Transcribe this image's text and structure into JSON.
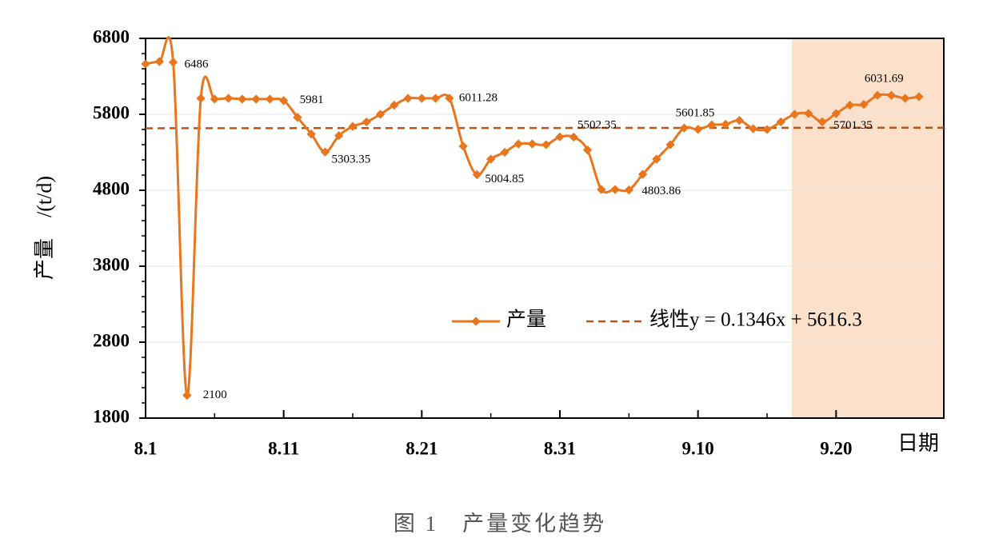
{
  "chart_data": {
    "type": "line",
    "y_label": "产量　/(t/d)",
    "x_label": "日期",
    "caption": "图 1　产量变化趋势",
    "x": [
      0,
      1,
      2,
      3,
      4,
      5,
      6,
      7,
      8,
      9,
      10,
      11,
      12,
      13,
      14,
      15,
      16,
      17,
      18,
      19,
      20,
      21,
      22,
      23,
      24,
      25,
      26,
      27,
      28,
      29,
      30,
      31,
      32,
      33,
      34,
      35,
      36,
      37,
      38,
      39,
      40,
      41,
      42,
      43,
      44,
      45,
      46,
      47,
      48,
      49,
      50,
      51,
      52,
      53,
      54,
      55,
      56
    ],
    "xlim": [
      0,
      57.8
    ],
    "xticks": [
      {
        "value": 0,
        "label": "8.1"
      },
      {
        "value": 10,
        "label": "8.11"
      },
      {
        "value": 20,
        "label": "8.21"
      },
      {
        "value": 30,
        "label": "8.31"
      },
      {
        "value": 40,
        "label": "9.10"
      },
      {
        "value": 50,
        "label": "9.20"
      }
    ],
    "ylim": [
      1800,
      6800
    ],
    "yticks": [
      1800,
      2800,
      3800,
      4800,
      5800,
      6800
    ],
    "grid": true,
    "series": [
      {
        "name": "产量",
        "color": "#e8761e",
        "values": [
          6463,
          6495,
          6486,
          2100,
          6010,
          6000,
          6010,
          6000,
          6000,
          6000,
          5981,
          5760,
          5540,
          5303.35,
          5520,
          5640,
          5700,
          5800,
          5920,
          6010,
          6010,
          6010,
          6011.28,
          5380,
          5004.85,
          5210,
          5300,
          5410,
          5410,
          5400,
          5502.35,
          5500,
          5330,
          4810,
          4810,
          4803.86,
          5010,
          5210,
          5400,
          5620,
          5601.85,
          5660,
          5670,
          5720,
          5610,
          5600,
          5700,
          5800,
          5810,
          5701.35,
          5810,
          5920,
          5930,
          6050,
          6050,
          6010,
          6031.69
        ],
        "value_labels": [
          null,
          null,
          "6486",
          "2100",
          null,
          null,
          null,
          null,
          null,
          null,
          "5981",
          null,
          null,
          "5303.35",
          null,
          null,
          null,
          null,
          null,
          null,
          null,
          null,
          "6011.28",
          null,
          "5004.85",
          null,
          null,
          null,
          null,
          null,
          "5502.35",
          null,
          null,
          null,
          null,
          "4803.86",
          null,
          null,
          null,
          null,
          "5601.85",
          null,
          null,
          null,
          null,
          null,
          null,
          null,
          null,
          "5701.35",
          null,
          null,
          null,
          null,
          null,
          null,
          "6031.69"
        ]
      }
    ],
    "trend": {
      "name": "线性y = 0.1346x + 5616.3",
      "slope": 0.1346,
      "intercept": 5616.3,
      "color": "#b8561a"
    },
    "highlight": {
      "range": [
        46.8,
        57.8
      ],
      "color": "#fbe0cc"
    }
  }
}
